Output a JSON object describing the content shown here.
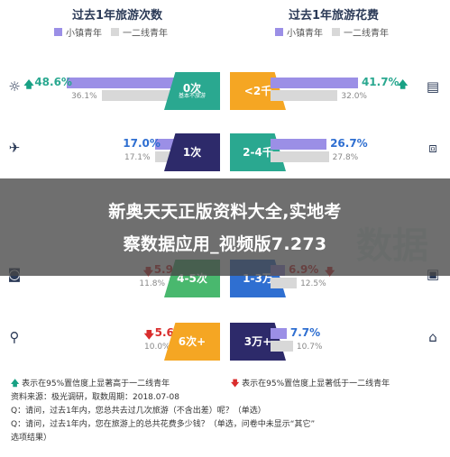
{
  "left_title": "过去1年旅游次数",
  "right_title": "过去1年旅游花费",
  "legend": {
    "town": "小镇青年",
    "city": "一二线青年"
  },
  "colors": {
    "town": "#9b8fe6",
    "city": "#d8d8d8",
    "up": "#18a184",
    "down": "#d92d2d",
    "teal": "#2aa890",
    "navy": "#2d2a6a",
    "orange": "#f5a623",
    "green": "#49b86e",
    "blue": "#2f6fd1"
  },
  "watermark": "数据",
  "banner": {
    "line1": "新奥天天正版资料大全,实地考",
    "line2": "察数据应用_视频版7.273"
  },
  "chart_data": [
    {
      "type": "bar",
      "title": "过去1年旅游次数",
      "categories": [
        "0次",
        "1次",
        "4-5次",
        "6次+"
      ],
      "category_subtitles": [
        "基本不旅游",
        "",
        "",
        ""
      ],
      "icons": [
        "sun-icon",
        "plane-icon",
        "camera-icon",
        "location-pin-icon"
      ],
      "series": [
        {
          "name": "小镇青年",
          "values": [
            48.6,
            17.0,
            5.9,
            5.6
          ]
        },
        {
          "name": "一二线青年",
          "values": [
            36.1,
            17.1,
            11.8,
            10.0
          ]
        }
      ],
      "significance": [
        "up",
        "none",
        "down",
        "down"
      ],
      "value_labels": {
        "小镇青年": [
          "48.6%",
          "17.0%",
          "5.9%",
          "5.6%"
        ],
        "一二线青年": [
          "36.1%",
          "17.1%",
          "11.8%",
          "10.0%"
        ]
      },
      "xlim": [
        0,
        55
      ]
    },
    {
      "type": "bar",
      "title": "过去1年旅游花费",
      "categories": [
        "<2千",
        "2-4千",
        "1-3万",
        "3万+"
      ],
      "icons": [
        "wallet-icon",
        "bag-icon",
        "bus-icon",
        "temple-icon"
      ],
      "series": [
        {
          "name": "小镇青年",
          "values": [
            41.7,
            26.7,
            6.9,
            7.7
          ]
        },
        {
          "name": "一二线青年",
          "values": [
            32.0,
            27.8,
            12.5,
            10.7
          ]
        }
      ],
      "significance": [
        "up",
        "none",
        "down",
        "none"
      ],
      "value_labels": {
        "小镇青年": [
          "41.7%",
          "26.7%",
          "6.9%",
          "7.7%"
        ],
        "一二线青年": [
          "32.0%",
          "27.8%",
          "12.5%",
          "10.7%"
        ]
      },
      "xlim": [
        0,
        55
      ]
    }
  ],
  "footnotes": [
    "表示在95%置信度上显著高于一二线青年",
    "表示在95%置信度上显著低于一二线青年",
    "资料来源：极光调研，取数周期：2018.07-08",
    "Q：请问，过去1年内，您总共去过几次旅游（不含出差）呢？（单选）",
    "Q：请问，过去1年内，您在旅游上的总共花费多少钱？（单选，问卷中未显示“其它”",
    "选项结果）"
  ]
}
